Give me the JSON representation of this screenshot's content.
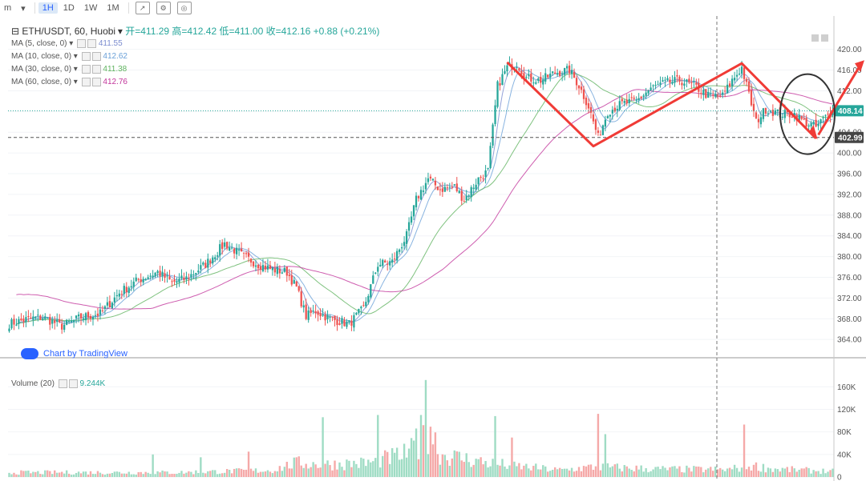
{
  "toolbar": {
    "items": [
      "m",
      "1H",
      "1D",
      "1W",
      "1M"
    ],
    "active": "1H",
    "icons": [
      "compare-icon",
      "settings-icon",
      "screenshot-icon"
    ]
  },
  "legend": {
    "symbol": "ETH/USDT, 60, Huobi",
    "ohlc": "开=411.29  高=412.42  低=411.00  收=412.16  +0.88 (+0.21%)",
    "ma": [
      {
        "label": "MA (5, close, 0)",
        "value": "411.55",
        "color": "#7b8ccf"
      },
      {
        "label": "MA (10, close, 0)",
        "value": "412.62",
        "color": "#6aa0d8"
      },
      {
        "label": "MA (30, close, 0)",
        "value": "411.38",
        "color": "#5fb35f"
      },
      {
        "label": "MA (60, close, 0)",
        "value": "412.76",
        "color": "#c2359b"
      }
    ],
    "volume_label": "Volume (20)",
    "volume_value": "9.244K",
    "tv_badge": "Chart by TradingView"
  },
  "chart_data": {
    "type": "candlestick",
    "price_axis": {
      "ticks": [
        364,
        368,
        372,
        376,
        380,
        384,
        388,
        392,
        396,
        400,
        404,
        408,
        412,
        416,
        420
      ],
      "tick_labels": [
        "364.00",
        "368.00",
        "372.00",
        "376.00",
        "380.00",
        "384.00",
        "388.00",
        "392.00",
        "396.00",
        "400.00",
        "404.00",
        "408.00",
        "412.00",
        "416.00",
        "420.00"
      ],
      "range": [
        361.4,
        421.8
      ]
    },
    "volume_axis": {
      "ticks": [
        0,
        40,
        80,
        120,
        160
      ],
      "tick_labels": [
        "0",
        "40K",
        "80K",
        "120K",
        "160K"
      ],
      "range": [
        0,
        176
      ]
    },
    "badges": {
      "last_price": "408.14",
      "low_line": "402.99"
    },
    "last_price": 408.14,
    "low_line": 402.99,
    "anchors": [
      [
        0,
        367.0
      ],
      [
        8,
        368.0
      ],
      [
        14,
        368.3
      ],
      [
        22,
        366.6
      ],
      [
        30,
        368.3
      ],
      [
        38,
        369.0
      ],
      [
        46,
        373.0
      ],
      [
        54,
        375.5
      ],
      [
        62,
        377.0
      ],
      [
        68,
        375.0
      ],
      [
        74,
        375.8
      ],
      [
        82,
        378.5
      ],
      [
        90,
        382.5
      ],
      [
        98,
        380.0
      ],
      [
        104,
        378.5
      ],
      [
        110,
        377.5
      ],
      [
        116,
        377.0
      ],
      [
        120,
        374.0
      ],
      [
        124,
        368.5
      ],
      [
        128,
        369.5
      ],
      [
        134,
        368.0
      ],
      [
        142,
        367.0
      ],
      [
        148,
        370.0
      ],
      [
        154,
        378.5
      ],
      [
        160,
        379.0
      ],
      [
        166,
        384.0
      ],
      [
        170,
        391.0
      ],
      [
        175,
        395.0
      ],
      [
        180,
        393.0
      ],
      [
        186,
        393.5
      ],
      [
        190,
        391.0
      ],
      [
        196,
        395.0
      ],
      [
        200,
        396.5
      ],
      [
        204,
        413.0
      ],
      [
        208,
        416.5
      ],
      [
        212,
        417.3
      ],
      [
        216,
        414.5
      ],
      [
        222,
        414.0
      ],
      [
        228,
        415.5
      ],
      [
        234,
        416.0
      ],
      [
        238,
        413.0
      ],
      [
        242,
        409.0
      ],
      [
        246,
        403.0
      ],
      [
        250,
        408.0
      ],
      [
        256,
        409.5
      ],
      [
        262,
        410.0
      ],
      [
        268,
        412.5
      ],
      [
        274,
        413.5
      ],
      [
        280,
        414.0
      ],
      [
        286,
        413.0
      ],
      [
        292,
        411.0
      ],
      [
        298,
        411.0
      ],
      [
        302,
        414.0
      ],
      [
        306,
        416.5
      ],
      [
        308,
        413.0
      ],
      [
        312,
        406.0
      ],
      [
        316,
        408.5
      ],
      [
        322,
        407.5
      ],
      [
        328,
        407.5
      ],
      [
        332,
        406.0
      ],
      [
        337,
        405.0
      ],
      [
        340,
        406.5
      ],
      [
        344,
        408.1
      ]
    ],
    "volume_profile": [
      [
        0,
        8
      ],
      [
        70,
        8
      ],
      [
        110,
        12
      ],
      [
        120,
        25
      ],
      [
        130,
        22
      ],
      [
        150,
        25
      ],
      [
        165,
        40
      ],
      [
        172,
        55
      ],
      [
        176,
        90
      ],
      [
        180,
        40
      ],
      [
        200,
        25
      ],
      [
        210,
        20
      ],
      [
        230,
        12
      ],
      [
        245,
        18
      ],
      [
        270,
        14
      ],
      [
        300,
        13
      ],
      [
        310,
        20
      ],
      [
        320,
        14
      ],
      [
        344,
        10
      ]
    ],
    "volume_spikes": [
      [
        174,
        172
      ],
      [
        131,
        106
      ],
      [
        154,
        110
      ],
      [
        172,
        110
      ],
      [
        170,
        86
      ],
      [
        203,
        108
      ],
      [
        210,
        70
      ],
      [
        246,
        112
      ],
      [
        249,
        76
      ],
      [
        307,
        93
      ],
      [
        100,
        45
      ],
      [
        60,
        40
      ],
      [
        80,
        35
      ]
    ]
  }
}
